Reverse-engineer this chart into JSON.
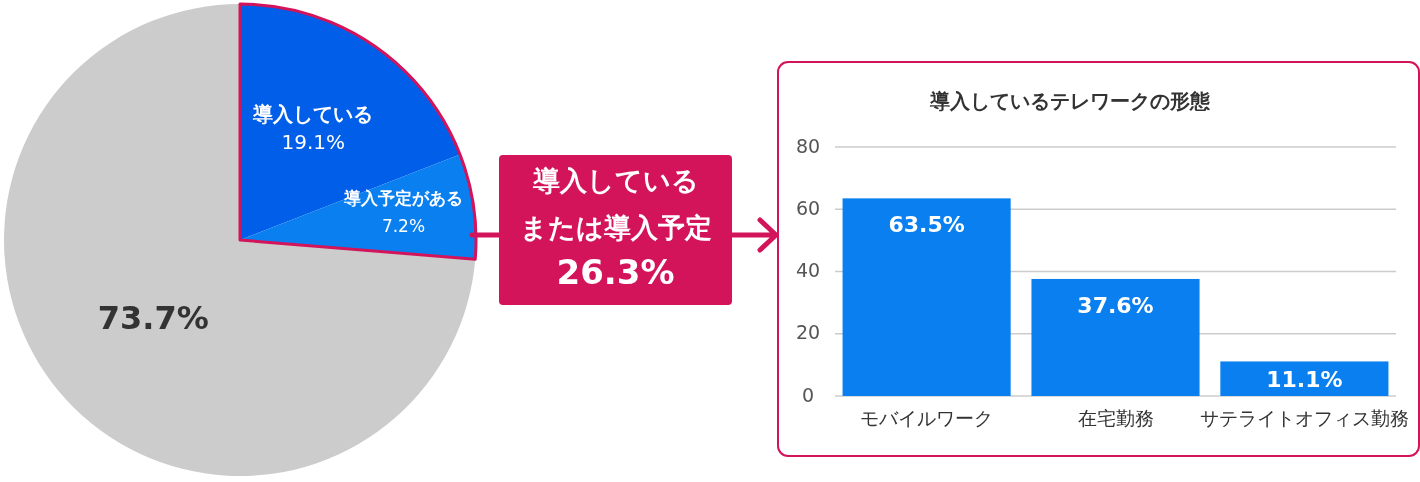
{
  "chart_data": [
    {
      "type": "pie",
      "categories": [
        "導入している",
        "導入予定がある",
        null
      ],
      "values": [
        19.1,
        7.2,
        73.7
      ],
      "colors": [
        "#005ee8",
        "#0a7ff0",
        "#cccccc"
      ],
      "value_labels": [
        "19.1%",
        "7.2%",
        "73.7%"
      ],
      "annotations": [
        "導入している",
        "または導入予定",
        "26.3%"
      ]
    },
    {
      "type": "bar",
      "title": "導入しているテレワークの形態",
      "categories": [
        "モバイルワーク",
        "在宅勤務",
        "サテライトオフィス勤務"
      ],
      "values": [
        63.5,
        37.6,
        11.1
      ],
      "color": "#0a7ff0",
      "value_labels": [
        "63.5%",
        "37.6%",
        "11.1%"
      ],
      "ylim": [
        0,
        80
      ],
      "yticks": [
        0,
        20,
        40,
        60,
        80
      ],
      "grid": "y"
    }
  ]
}
